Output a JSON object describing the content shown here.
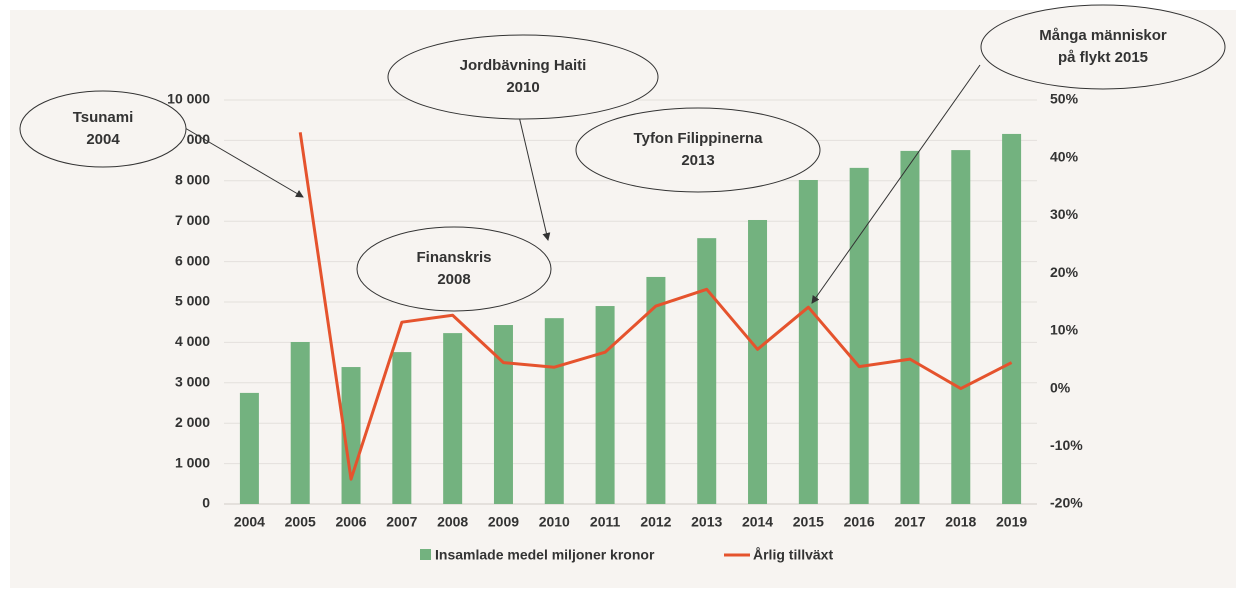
{
  "chart_data": {
    "type": "bar-line",
    "categories": [
      "2004",
      "2005",
      "2006",
      "2007",
      "2008",
      "2009",
      "2010",
      "2011",
      "2012",
      "2013",
      "2014",
      "2015",
      "2016",
      "2017",
      "2018",
      "2019"
    ],
    "series": [
      {
        "name": "Insamlade medel miljoner kronor",
        "type": "bar",
        "color": "#73b27f",
        "values": [
          2750,
          4010,
          3390,
          3760,
          4230,
          4430,
          4600,
          4900,
          5620,
          6580,
          7030,
          8020,
          8320,
          8740,
          8760,
          9160
        ]
      },
      {
        "name": "Årlig tillväxt",
        "type": "line",
        "axis": "y2",
        "color": "#e5532d",
        "values": [
          null,
          44.4,
          -15.7,
          11.5,
          12.7,
          4.5,
          3.7,
          6.3,
          14.3,
          17.2,
          6.8,
          14.1,
          3.8,
          5.1,
          0,
          4.5
        ]
      }
    ],
    "ylim": [
      0,
      10000
    ],
    "yticks": [
      0,
      {
        "value": 1000,
        "label": "1 000"
      },
      {
        "value": 2000,
        "label": "2 000"
      },
      {
        "value": 3000,
        "label": "3 000"
      },
      {
        "value": 4000,
        "label": "4 000"
      },
      {
        "value": 5000,
        "label": "5 000"
      },
      {
        "value": 6000,
        "label": "6 000"
      },
      {
        "value": 7000,
        "label": "7 000"
      },
      {
        "value": 8000,
        "label": "8 000"
      },
      {
        "value": 9000,
        "label": "9 000"
      },
      {
        "value": 10000,
        "label": "10 000"
      }
    ],
    "y2lim": [
      -20,
      50
    ],
    "y2ticks": [
      {
        "value": -20,
        "label": "-20%"
      },
      {
        "value": -10,
        "label": "-10%"
      },
      {
        "value": 0,
        "label": "0%"
      },
      {
        "value": 10,
        "label": "10%"
      },
      {
        "value": 20,
        "label": "20%"
      },
      {
        "value": 30,
        "label": "30%"
      },
      {
        "value": 40,
        "label": "40%"
      },
      {
        "value": 50,
        "label": "50%"
      }
    ],
    "grid": true,
    "legend": "bottom",
    "annotations": [
      {
        "lines": [
          "Tsunami",
          "2004"
        ]
      },
      {
        "lines": [
          "Jordbävning Haiti",
          "2010"
        ]
      },
      {
        "lines": [
          "Tyfon Filippinerna",
          "2013"
        ]
      },
      {
        "lines": [
          "Finanskris",
          "2008"
        ]
      },
      {
        "lines": [
          "Många människor",
          "på flykt 2015"
        ]
      }
    ]
  }
}
